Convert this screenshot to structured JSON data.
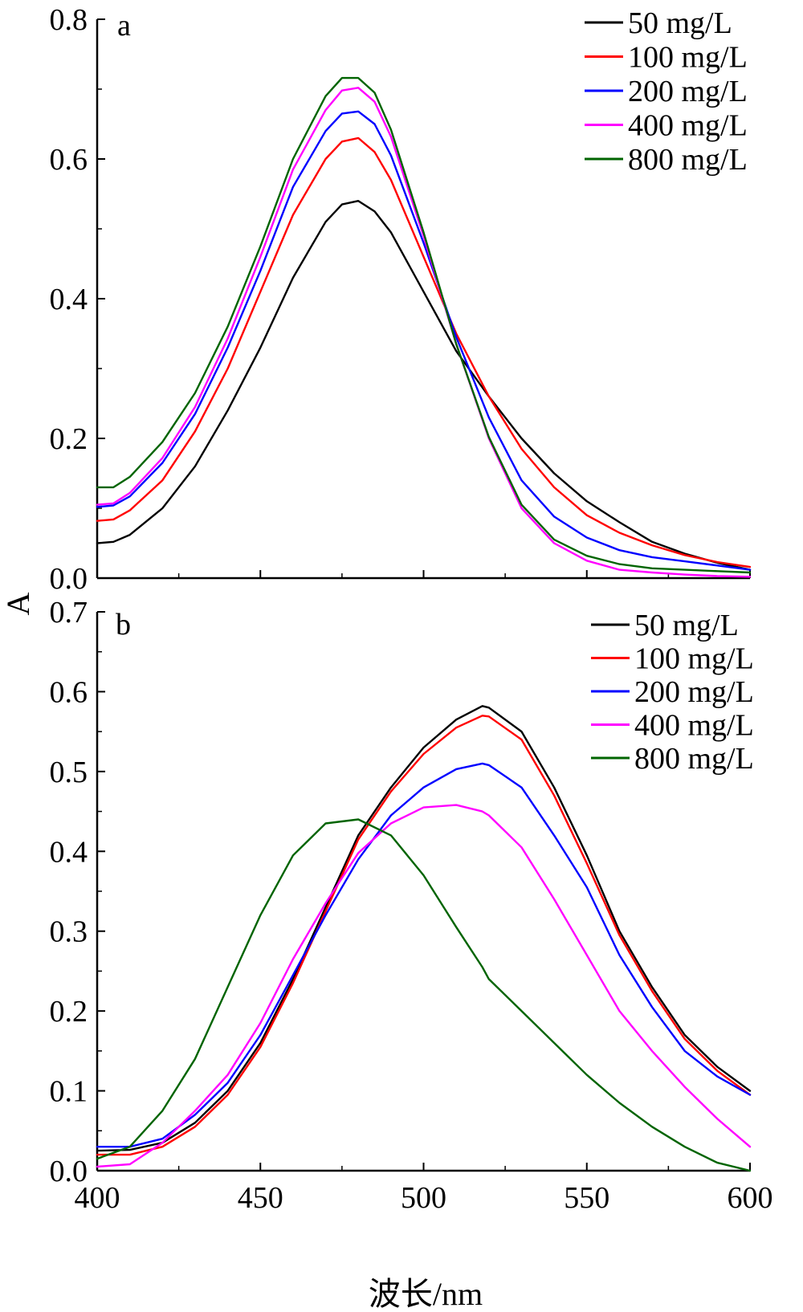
{
  "y_axis_label": "A",
  "x_axis_label": "波长/nm",
  "colors": {
    "50 mg/L": "#000000",
    "100 mg/L": "#ff0000",
    "200 mg/L": "#0000ff",
    "400 mg/L": "#ff00ff",
    "800 mg/L": "#006400"
  },
  "chart_data": [
    {
      "type": "line",
      "panel_label": "a",
      "xlabel": "波长/nm",
      "ylabel": "A",
      "xlim": [
        400,
        600
      ],
      "ylim": [
        0,
        0.8
      ],
      "xticks": [
        400,
        450,
        500,
        550,
        600
      ],
      "yticks": [
        "0.0",
        "0.2",
        "0.4",
        "0.6",
        "0.8"
      ],
      "legend_position": "top-right",
      "x": [
        400,
        405,
        410,
        420,
        430,
        440,
        450,
        460,
        470,
        475,
        480,
        485,
        490,
        500,
        510,
        520,
        530,
        540,
        550,
        560,
        570,
        580,
        590,
        600
      ],
      "series": [
        {
          "name": "50 mg/L",
          "color": "#000000",
          "values": [
            0.05,
            0.052,
            0.062,
            0.1,
            0.16,
            0.24,
            0.33,
            0.43,
            0.51,
            0.535,
            0.54,
            0.525,
            0.495,
            0.41,
            0.325,
            0.26,
            0.2,
            0.15,
            0.11,
            0.08,
            0.052,
            0.035,
            0.022,
            0.012
          ]
        },
        {
          "name": "100 mg/L",
          "color": "#ff0000",
          "values": [
            0.082,
            0.084,
            0.097,
            0.14,
            0.21,
            0.3,
            0.41,
            0.52,
            0.6,
            0.625,
            0.63,
            0.61,
            0.57,
            0.46,
            0.35,
            0.26,
            0.185,
            0.13,
            0.09,
            0.065,
            0.047,
            0.033,
            0.023,
            0.016
          ]
        },
        {
          "name": "200 mg/L",
          "color": "#0000ff",
          "values": [
            0.102,
            0.104,
            0.117,
            0.165,
            0.235,
            0.33,
            0.44,
            0.56,
            0.64,
            0.665,
            0.668,
            0.65,
            0.605,
            0.48,
            0.345,
            0.23,
            0.14,
            0.088,
            0.058,
            0.04,
            0.03,
            0.024,
            0.018,
            0.012
          ]
        },
        {
          "name": "400 mg/L",
          "color": "#ff00ff",
          "values": [
            0.105,
            0.107,
            0.122,
            0.172,
            0.245,
            0.343,
            0.46,
            0.585,
            0.67,
            0.698,
            0.702,
            0.682,
            0.632,
            0.49,
            0.335,
            0.2,
            0.1,
            0.05,
            0.025,
            0.012,
            0.008,
            0.005,
            0.003,
            0.002
          ]
        },
        {
          "name": "800 mg/L",
          "color": "#006400",
          "values": [
            0.13,
            0.13,
            0.145,
            0.195,
            0.265,
            0.36,
            0.475,
            0.6,
            0.69,
            0.716,
            0.716,
            0.695,
            0.642,
            0.495,
            0.335,
            0.202,
            0.105,
            0.055,
            0.032,
            0.02,
            0.014,
            0.012,
            0.01,
            0.008
          ]
        }
      ]
    },
    {
      "type": "line",
      "panel_label": "b",
      "xlabel": "波长/nm",
      "ylabel": "A",
      "xlim": [
        400,
        600
      ],
      "ylim": [
        0,
        0.7
      ],
      "xticks": [
        400,
        450,
        500,
        550,
        600
      ],
      "yticks": [
        "0.0",
        "0.1",
        "0.2",
        "0.3",
        "0.4",
        "0.5",
        "0.6",
        "0.7"
      ],
      "legend_position": "top-right",
      "x": [
        400,
        410,
        420,
        430,
        440,
        450,
        460,
        470,
        480,
        490,
        500,
        510,
        518,
        520,
        530,
        540,
        550,
        560,
        570,
        580,
        590,
        600
      ],
      "series": [
        {
          "name": "50 mg/L",
          "color": "#000000",
          "values": [
            0.025,
            0.026,
            0.035,
            0.06,
            0.1,
            0.16,
            0.24,
            0.33,
            0.42,
            0.48,
            0.53,
            0.565,
            0.582,
            0.58,
            0.55,
            0.48,
            0.395,
            0.3,
            0.23,
            0.17,
            0.13,
            0.1
          ]
        },
        {
          "name": "100 mg/L",
          "color": "#ff0000",
          "values": [
            0.02,
            0.02,
            0.03,
            0.055,
            0.095,
            0.155,
            0.235,
            0.325,
            0.415,
            0.475,
            0.522,
            0.555,
            0.57,
            0.569,
            0.54,
            0.47,
            0.385,
            0.295,
            0.225,
            0.165,
            0.125,
            0.095
          ]
        },
        {
          "name": "200 mg/L",
          "color": "#0000ff",
          "values": [
            0.03,
            0.03,
            0.04,
            0.07,
            0.11,
            0.17,
            0.245,
            0.32,
            0.39,
            0.445,
            0.48,
            0.503,
            0.51,
            0.508,
            0.48,
            0.42,
            0.355,
            0.27,
            0.205,
            0.15,
            0.118,
            0.095
          ]
        },
        {
          "name": "400 mg/L",
          "color": "#ff00ff",
          "values": [
            0.005,
            0.008,
            0.035,
            0.075,
            0.12,
            0.185,
            0.265,
            0.335,
            0.398,
            0.435,
            0.455,
            0.458,
            0.45,
            0.445,
            0.405,
            0.34,
            0.27,
            0.2,
            0.15,
            0.105,
            0.065,
            0.03
          ]
        },
        {
          "name": "800 mg/L",
          "color": "#006400",
          "values": [
            0.015,
            0.03,
            0.075,
            0.14,
            0.23,
            0.32,
            0.395,
            0.435,
            0.44,
            0.42,
            0.37,
            0.305,
            0.255,
            0.24,
            0.2,
            0.16,
            0.12,
            0.085,
            0.055,
            0.03,
            0.01,
            0.0
          ]
        }
      ]
    }
  ]
}
